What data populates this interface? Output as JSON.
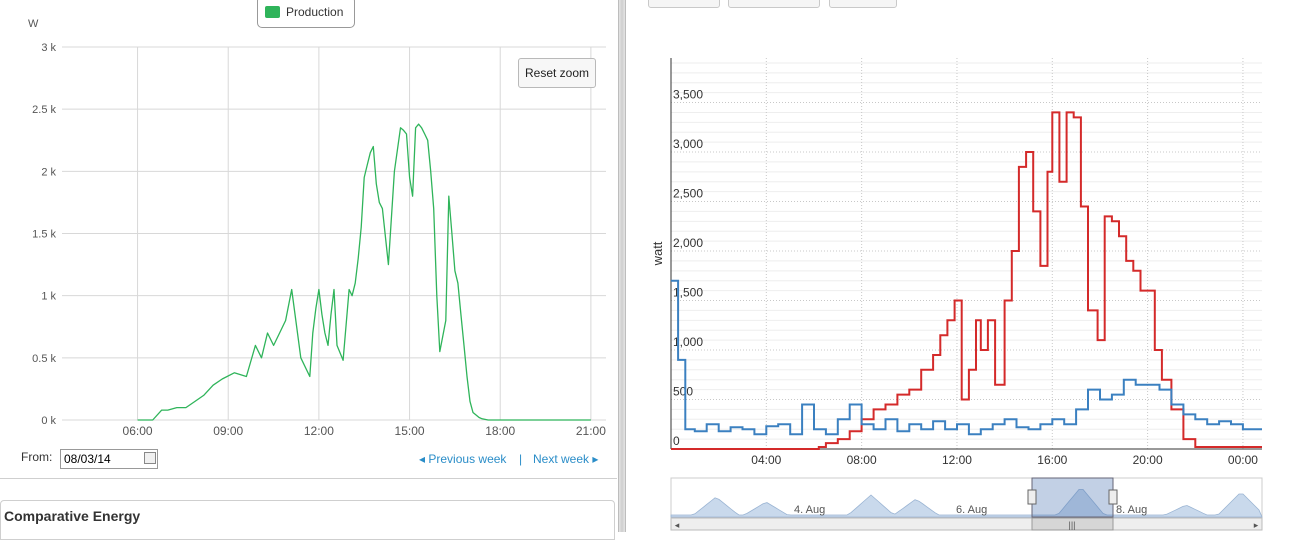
{
  "left_panel": {
    "legend_label": "Production",
    "reset_label": "Reset zoom",
    "from_label": "From:",
    "from_value": "08/03/14",
    "prev_week": "Previous week",
    "separator": "|",
    "next_week": "Next week",
    "section_title": "Comparative Energy"
  },
  "chart_data": [
    {
      "type": "line",
      "ylabel": "W",
      "x_ticks": [
        "06:00",
        "09:00",
        "12:00",
        "15:00",
        "18:00",
        "21:00"
      ],
      "y_ticks": [
        "0 k",
        "0.5 k",
        "1 k",
        "1.5 k",
        "2 k",
        "2.5 k",
        "3 k"
      ],
      "ylim": [
        0,
        3000
      ],
      "xlim_hours": [
        3.5,
        21.5
      ],
      "grid": true,
      "legend_position": "top-center",
      "series": [
        {
          "name": "Production",
          "color": "#2fb45a",
          "x": [
            6.0,
            6.5,
            6.8,
            7.0,
            7.3,
            7.6,
            7.9,
            8.2,
            8.5,
            8.8,
            9.2,
            9.6,
            9.9,
            10.1,
            10.3,
            10.5,
            10.7,
            10.9,
            11.1,
            11.4,
            11.7,
            11.8,
            11.9,
            12.0,
            12.1,
            12.2,
            12.3,
            12.4,
            12.5,
            12.6,
            12.8,
            13.0,
            13.1,
            13.2,
            13.3,
            13.4,
            13.5,
            13.6,
            13.7,
            13.8,
            13.9,
            14.0,
            14.1,
            14.3,
            14.5,
            14.7,
            14.8,
            14.9,
            15.0,
            15.1,
            15.2,
            15.3,
            15.4,
            15.5,
            15.6,
            15.7,
            15.8,
            15.9,
            16.0,
            16.2,
            16.3,
            16.4,
            16.5,
            16.6,
            16.7,
            16.8,
            16.9,
            17.0,
            17.1,
            17.3,
            17.4,
            17.6,
            17.8,
            17.9,
            18.0,
            18.2,
            18.4,
            18.6,
            18.8,
            19.0,
            19.2,
            19.4,
            19.6,
            19.8,
            20.0,
            20.2,
            20.4,
            20.6,
            20.8,
            21.0
          ],
          "y": [
            0,
            0,
            80,
            80,
            100,
            100,
            150,
            200,
            280,
            330,
            380,
            350,
            600,
            500,
            700,
            600,
            700,
            800,
            1050,
            500,
            350,
            700,
            900,
            1050,
            850,
            700,
            600,
            850,
            1050,
            600,
            480,
            1050,
            1000,
            1100,
            1300,
            1550,
            1950,
            2050,
            2150,
            2200,
            1900,
            1750,
            1700,
            1250,
            2000,
            2350,
            2330,
            2300,
            1950,
            1800,
            2350,
            2380,
            2350,
            2300,
            2250,
            2000,
            1700,
            1000,
            550,
            800,
            1800,
            1500,
            1200,
            1100,
            850,
            600,
            350,
            150,
            60,
            20,
            10,
            0,
            0,
            0,
            0,
            0,
            0,
            0,
            0,
            0,
            0,
            0,
            0,
            0,
            0,
            0,
            0,
            0,
            0,
            0
          ]
        }
      ]
    },
    {
      "type": "line",
      "ylabel": "watt",
      "x_ticks": [
        "04:00",
        "08:00",
        "12:00",
        "16:00",
        "20:00",
        "00:00"
      ],
      "y_ticks": [
        "0",
        "500",
        "1,000",
        "1,500",
        "2,000",
        "2,500",
        "3,000",
        "3,500"
      ],
      "ylim": [
        0,
        3950
      ],
      "xlim_hours": [
        0,
        24.8
      ],
      "grid": true,
      "legend_position": "none",
      "series": [
        {
          "name": "",
          "color": "#d42a2a",
          "step": true,
          "x": [
            0,
            6.2,
            6.5,
            7.0,
            7.5,
            8.0,
            8.5,
            9.0,
            9.5,
            10.0,
            10.5,
            11.0,
            11.3,
            11.6,
            11.9,
            12.2,
            12.5,
            12.8,
            13.0,
            13.3,
            13.6,
            14.0,
            14.3,
            14.6,
            14.9,
            15.2,
            15.5,
            15.8,
            16.0,
            16.3,
            16.6,
            16.9,
            17.2,
            17.5,
            17.9,
            18.2,
            18.5,
            18.8,
            19.1,
            19.4,
            19.7,
            20.0,
            20.3,
            20.6,
            21.0,
            21.5,
            22.0,
            24.8
          ],
          "y": [
            0,
            20,
            60,
            100,
            180,
            300,
            400,
            450,
            550,
            600,
            800,
            950,
            1150,
            1300,
            1500,
            500,
            800,
            1300,
            1000,
            1300,
            650,
            1500,
            2000,
            2850,
            3000,
            2400,
            1850,
            2800,
            3400,
            2700,
            3400,
            3350,
            2450,
            1400,
            1100,
            2350,
            2300,
            2150,
            1900,
            1800,
            1600,
            1600,
            1000,
            700,
            400,
            100,
            20,
            20
          ]
        },
        {
          "name": "",
          "color": "#3b80c0",
          "step": true,
          "x": [
            0,
            0.3,
            0.6,
            1.0,
            1.5,
            2.0,
            2.5,
            3.0,
            3.5,
            4.0,
            4.5,
            5.0,
            5.5,
            6.0,
            6.5,
            7.0,
            7.5,
            8.0,
            8.5,
            9.0,
            9.5,
            10.0,
            10.5,
            11.0,
            11.5,
            12.0,
            12.5,
            13.0,
            13.5,
            14.0,
            14.5,
            15.0,
            15.5,
            16.0,
            16.5,
            17.0,
            17.5,
            18.0,
            18.5,
            19.0,
            19.5,
            20.0,
            20.5,
            21.0,
            21.5,
            22.0,
            22.5,
            23.0,
            23.5,
            24.0,
            24.8
          ],
          "y": [
            1700,
            900,
            200,
            180,
            250,
            180,
            220,
            200,
            150,
            230,
            250,
            150,
            450,
            200,
            150,
            300,
            450,
            250,
            200,
            300,
            180,
            250,
            200,
            280,
            200,
            250,
            150,
            200,
            250,
            300,
            220,
            200,
            250,
            300,
            250,
            400,
            600,
            500,
            550,
            700,
            650,
            650,
            600,
            450,
            350,
            300,
            250,
            280,
            250,
            200,
            200
          ]
        }
      ]
    }
  ],
  "navigator": {
    "labels": [
      "4. Aug",
      "6. Aug",
      "8. Aug"
    ],
    "scroll_glyph": "|||"
  }
}
